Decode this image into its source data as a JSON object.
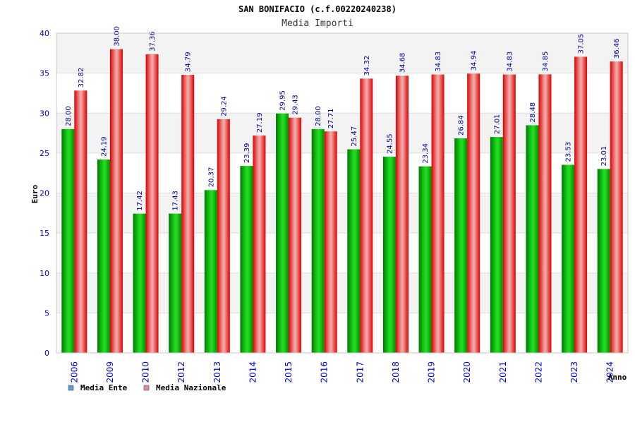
{
  "chart_data": {
    "type": "bar",
    "title": "SAN BONIFACIO (c.f.00220240238)",
    "subtitle": "Media Importi",
    "xlabel": "Anno",
    "ylabel": "Euro",
    "ylim": [
      0,
      40
    ],
    "yticks": [
      0,
      5,
      10,
      15,
      20,
      25,
      30,
      35,
      40
    ],
    "categories": [
      "2006",
      "2009",
      "2010",
      "2012",
      "2013",
      "2014",
      "2015",
      "2016",
      "2017",
      "2018",
      "2019",
      "2020",
      "2021",
      "2022",
      "2023",
      "2024"
    ],
    "series": [
      {
        "name": "Media Ente",
        "legend_color": "#5b9bd5",
        "color": "#00b000",
        "values": [
          28.0,
          24.19,
          17.42,
          17.43,
          20.37,
          23.39,
          29.95,
          28.0,
          25.47,
          24.55,
          23.34,
          26.84,
          27.01,
          28.48,
          23.53,
          23.01
        ],
        "labels": [
          "28.00",
          "24.19",
          "17.42",
          "17.43",
          "20.37",
          "23.39",
          "29.95",
          "28.00",
          "25.47",
          "24.55",
          "23.34",
          "26.84",
          "27.01",
          "28.48",
          "23.53",
          "23.01"
        ]
      },
      {
        "name": "Media Nazionale",
        "legend_color": "#d58bb8",
        "color": "#e00000",
        "values": [
          32.82,
          38.0,
          37.36,
          34.79,
          29.24,
          27.19,
          29.43,
          27.71,
          34.32,
          34.68,
          34.83,
          34.94,
          34.83,
          34.85,
          37.05,
          36.46
        ],
        "labels": [
          "32.82",
          "38.00",
          "37.36",
          "34.79",
          "29.24",
          "27.19",
          "29.43",
          "27.71",
          "34.32",
          "34.68",
          "34.83",
          "34.94",
          "34.83",
          "34.85",
          "37.05",
          "36.46"
        ]
      }
    ],
    "grid": true,
    "legend_position": "bottom-left"
  }
}
